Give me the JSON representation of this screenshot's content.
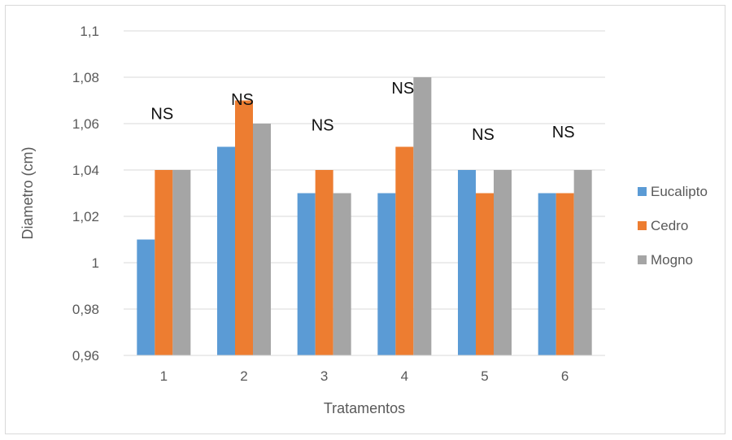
{
  "chart_data": {
    "type": "bar",
    "title": "",
    "xlabel": "Tratamentos",
    "ylabel": "Diametro (cm)",
    "categories": [
      "1",
      "2",
      "3",
      "4",
      "5",
      "6"
    ],
    "series": [
      {
        "name": "Eucalipto",
        "color": "#5b9bd5",
        "values": [
          1.01,
          1.05,
          1.03,
          1.03,
          1.04,
          1.03
        ]
      },
      {
        "name": "Cedro",
        "color": "#ed7d31",
        "values": [
          1.04,
          1.07,
          1.04,
          1.05,
          1.03,
          1.03
        ]
      },
      {
        "name": "Mogno",
        "color": "#a5a5a5",
        "values": [
          1.04,
          1.06,
          1.03,
          1.08,
          1.04,
          1.04
        ]
      }
    ],
    "ylim": [
      0.96,
      1.1
    ],
    "yticks": [
      "0,96",
      "0,98",
      "1",
      "1,02",
      "1,04",
      "1,06",
      "1,08",
      "1,1"
    ],
    "ytick_values": [
      0.96,
      0.98,
      1.0,
      1.02,
      1.04,
      1.06,
      1.08,
      1.1
    ],
    "grid": true,
    "legend_position": "right",
    "annotations": [
      {
        "category": "1",
        "text": "NS",
        "y": 1.062
      },
      {
        "category": "2",
        "text": "NS",
        "y": 1.068
      },
      {
        "category": "3",
        "text": "NS",
        "y": 1.057
      },
      {
        "category": "4",
        "text": "NS",
        "y": 1.073
      },
      {
        "category": "5",
        "text": "NS",
        "y": 1.053
      },
      {
        "category": "6",
        "text": "NS",
        "y": 1.054
      }
    ]
  }
}
